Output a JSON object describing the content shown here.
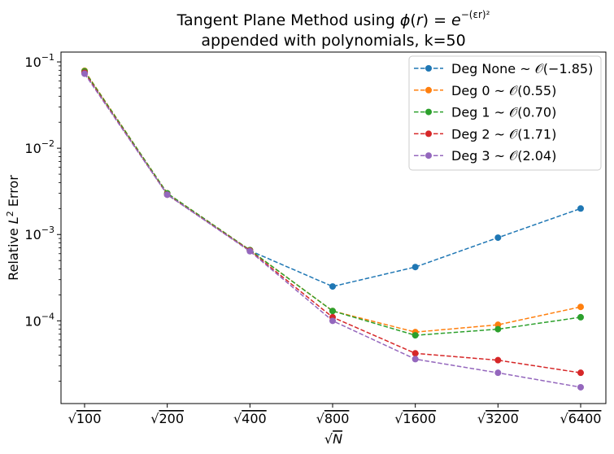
{
  "chart_data": {
    "type": "line",
    "title_line1": "Tangent Plane Method using ϕ(r) = e^{−(εr)^2}",
    "title_line2": "appended with polynomials, k=50",
    "xlabel": "√N",
    "ylabel": "Relative L^2 Error",
    "y_scale": "log",
    "ylim": [
      1.1e-05,
      0.13
    ],
    "x": [
      100,
      200,
      400,
      800,
      1600,
      3200,
      6400
    ],
    "x_tick_labels": [
      "√100",
      "√200",
      "√400",
      "√800",
      "√1600",
      "√3200",
      "√6400"
    ],
    "y_ticks": [
      {
        "value": 0.1,
        "base": "10",
        "exp": "−1"
      },
      {
        "value": 0.01,
        "base": "10",
        "exp": "−2"
      },
      {
        "value": 0.001,
        "base": "10",
        "exp": "−3"
      },
      {
        "value": 0.0001,
        "base": "10",
        "exp": "−4"
      }
    ],
    "grid": false,
    "legend_position": "top-right",
    "series": [
      {
        "name": "Deg None ~ 𝒪(−1.85)",
        "color": "#1f77b4",
        "values": [
          0.076,
          0.0029,
          0.00065,
          0.00025,
          0.00042,
          0.00092,
          0.002
        ]
      },
      {
        "name": "Deg 0 ~ 𝒪(0.55)",
        "color": "#ff7f0e",
        "values": [
          0.079,
          0.003,
          0.00066,
          0.00013,
          7.4e-05,
          9e-05,
          0.000145
        ]
      },
      {
        "name": "Deg 1 ~ 𝒪(0.70)",
        "color": "#2ca02c",
        "values": [
          0.078,
          0.003,
          0.00066,
          0.00013,
          6.8e-05,
          8e-05,
          0.00011
        ]
      },
      {
        "name": "Deg 2 ~ 𝒪(1.71)",
        "color": "#d62728",
        "values": [
          0.075,
          0.0029,
          0.00065,
          0.00011,
          4.2e-05,
          3.5e-05,
          2.5e-05
        ]
      },
      {
        "name": "Deg 3 ~ 𝒪(2.04)",
        "color": "#9467bd",
        "values": [
          0.073,
          0.0029,
          0.00064,
          0.0001,
          3.6e-05,
          2.5e-05,
          1.7e-05
        ]
      }
    ]
  }
}
